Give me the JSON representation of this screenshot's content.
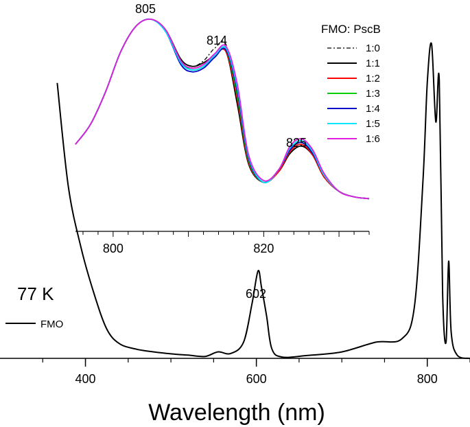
{
  "chart_data": [
    {
      "type": "line",
      "title": "",
      "xlabel": "Wavelength (nm)",
      "ylabel": "",
      "xlim": [
        300,
        850
      ],
      "ylim": [
        0,
        1.0
      ],
      "x_ticks": [
        "400",
        "600",
        "800"
      ],
      "grid": false,
      "legend": "bottom-left",
      "annotations": [
        {
          "text": "77 K",
          "x": 0,
          "y": 0
        },
        {
          "text": "602",
          "x": 602,
          "y": 0.27
        }
      ],
      "series": [
        {
          "name": "FMO",
          "color": "#000000",
          "x": [
            367,
            380,
            395,
            410,
            425,
            440,
            460,
            480,
            500,
            520,
            540,
            555,
            570,
            585,
            595,
            602,
            606,
            612,
            618,
            630,
            660,
            700,
            740,
            770,
            785,
            795,
            800,
            805,
            810,
            814,
            818,
            822,
            825,
            828,
            835,
            850
          ],
          "y": [
            0.85,
            0.53,
            0.34,
            0.2,
            0.09,
            0.045,
            0.028,
            0.02,
            0.014,
            0.01,
            0.006,
            0.02,
            0.015,
            0.05,
            0.17,
            0.27,
            0.22,
            0.13,
            0.03,
            0.004,
            0.009,
            0.02,
            0.05,
            0.06,
            0.16,
            0.55,
            0.85,
            0.97,
            0.73,
            0.86,
            0.2,
            0.05,
            0.3,
            0.08,
            0.01,
            0.0
          ]
        }
      ]
    },
    {
      "type": "line",
      "title": "",
      "xlabel": "",
      "ylabel": "",
      "xlim": [
        795,
        834
      ],
      "ylim": [
        0,
        1.0
      ],
      "x_ticks": [
        "800",
        "820"
      ],
      "grid": false,
      "legend": "top-right",
      "legend_title": "FMO: PscB",
      "annotations": [
        {
          "text": "805",
          "x": 805,
          "y": 1.0
        },
        {
          "text": "814",
          "x": 814,
          "y": 0.82
        },
        {
          "text": "825",
          "x": 825,
          "y": 0.33
        }
      ],
      "x": [
        795,
        797,
        799,
        801,
        803,
        805,
        807,
        809,
        810.5,
        812,
        813.5,
        815,
        816.5,
        818,
        820,
        822,
        823.5,
        825,
        826.5,
        828,
        830,
        832,
        834
      ],
      "series": [
        {
          "name": "1:0",
          "color": "#000000",
          "dash": "dashdot",
          "y": [
            0.31,
            0.42,
            0.6,
            0.82,
            0.96,
            1.0,
            0.94,
            0.78,
            0.74,
            0.77,
            0.84,
            0.86,
            0.55,
            0.21,
            0.1,
            0.16,
            0.26,
            0.3,
            0.25,
            0.13,
            0.05,
            0.02,
            0.01
          ]
        },
        {
          "name": "1:1",
          "color": "#000000",
          "dash": "solid",
          "y": [
            0.31,
            0.42,
            0.6,
            0.82,
            0.96,
            1.0,
            0.94,
            0.78,
            0.74,
            0.76,
            0.8,
            0.82,
            0.53,
            0.2,
            0.1,
            0.16,
            0.26,
            0.3,
            0.25,
            0.13,
            0.05,
            0.02,
            0.01
          ]
        },
        {
          "name": "1:2",
          "color": "#ff0000",
          "dash": "solid",
          "y": [
            0.31,
            0.42,
            0.6,
            0.82,
            0.96,
            1.0,
            0.94,
            0.77,
            0.73,
            0.75,
            0.8,
            0.82,
            0.56,
            0.21,
            0.1,
            0.16,
            0.27,
            0.31,
            0.25,
            0.13,
            0.05,
            0.02,
            0.01
          ]
        },
        {
          "name": "1:3",
          "color": "#00cc00",
          "dash": "solid",
          "y": [
            0.31,
            0.42,
            0.6,
            0.82,
            0.96,
            1.0,
            0.94,
            0.77,
            0.72,
            0.74,
            0.79,
            0.83,
            0.58,
            0.22,
            0.1,
            0.17,
            0.28,
            0.32,
            0.26,
            0.14,
            0.05,
            0.02,
            0.01
          ]
        },
        {
          "name": "1:4",
          "color": "#0000cc",
          "dash": "solid",
          "y": [
            0.31,
            0.42,
            0.6,
            0.82,
            0.96,
            1.0,
            0.93,
            0.75,
            0.71,
            0.73,
            0.79,
            0.83,
            0.6,
            0.23,
            0.1,
            0.17,
            0.28,
            0.32,
            0.26,
            0.14,
            0.05,
            0.02,
            0.01
          ]
        },
        {
          "name": "1:5",
          "color": "#00e5ff",
          "dash": "solid",
          "y": [
            0.31,
            0.42,
            0.6,
            0.82,
            0.96,
            1.0,
            0.93,
            0.76,
            0.72,
            0.74,
            0.8,
            0.84,
            0.62,
            0.24,
            0.1,
            0.17,
            0.29,
            0.33,
            0.27,
            0.14,
            0.05,
            0.02,
            0.01
          ]
        },
        {
          "name": "1:6",
          "color": "#e01ee0",
          "dash": "solid",
          "y": [
            0.31,
            0.42,
            0.6,
            0.82,
            0.96,
            1.0,
            0.94,
            0.77,
            0.73,
            0.75,
            0.81,
            0.85,
            0.64,
            0.25,
            0.11,
            0.17,
            0.3,
            0.34,
            0.28,
            0.15,
            0.05,
            0.02,
            0.01
          ]
        }
      ]
    }
  ]
}
